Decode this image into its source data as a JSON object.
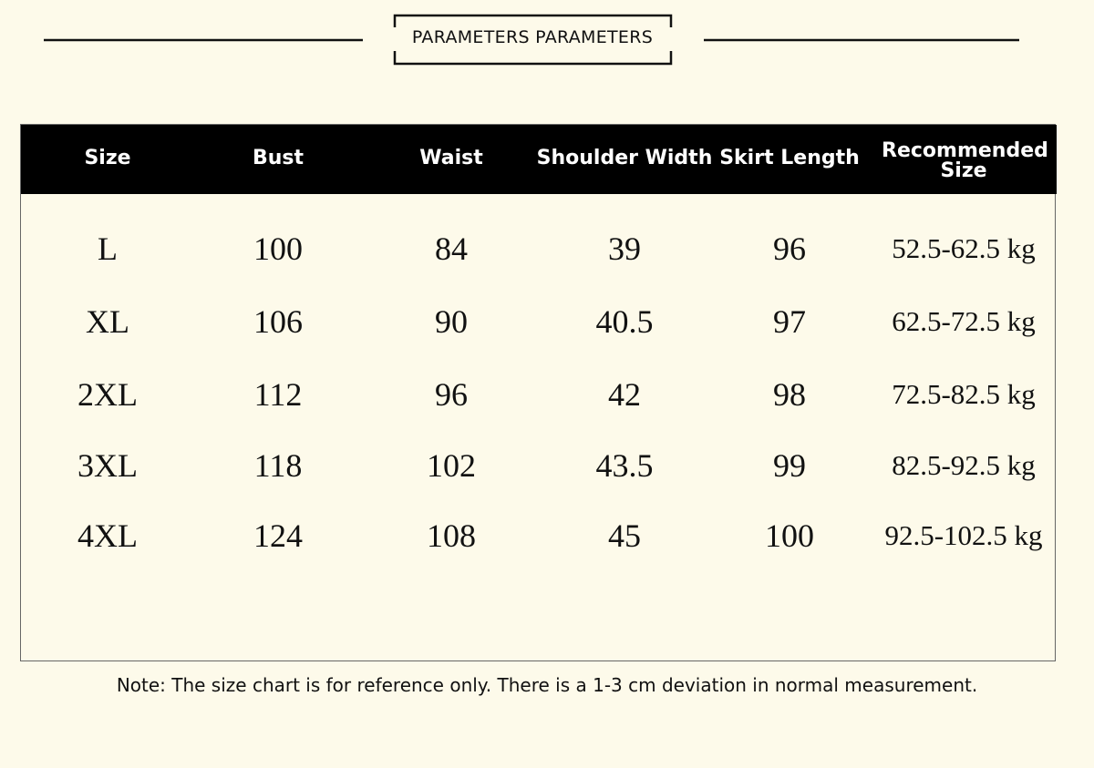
{
  "header": {
    "title": "PARAMETERS PARAMETERS"
  },
  "table": {
    "columns": [
      "Size",
      "Bust",
      "Waist",
      "Shoulder Width",
      "Skirt Length",
      "Recommended Size"
    ],
    "rows": [
      [
        "L",
        "100",
        "84",
        "39",
        "96",
        "52.5-62.5 kg"
      ],
      [
        "XL",
        "106",
        "90",
        "40.5",
        "97",
        "62.5-72.5 kg"
      ],
      [
        "2XL",
        "112",
        "96",
        "42",
        "98",
        "72.5-82.5 kg"
      ],
      [
        "3XL",
        "118",
        "102",
        "43.5",
        "99",
        "82.5-92.5 kg"
      ],
      [
        "4XL",
        "124",
        "108",
        "45",
        "100",
        "92.5-102.5 kg"
      ]
    ]
  },
  "note": "Note: The size chart is for reference only. There is a 1-3 cm deviation in normal measurement."
}
